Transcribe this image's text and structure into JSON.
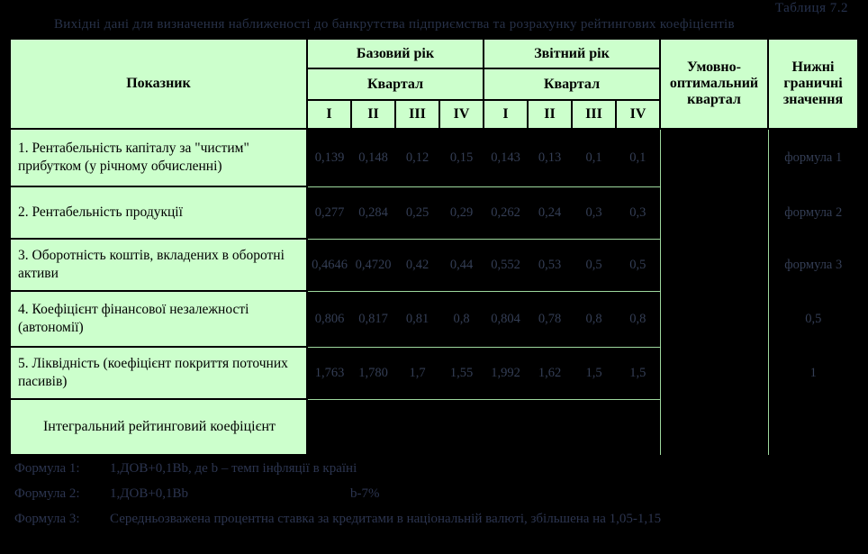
{
  "page_title": "Таблиця 7.2",
  "subtitle": "Вихідні дані для визначення наближеності до банкрутства підприємства та розрахунку рейтингових коефіцієнтів",
  "table": {
    "headers": {
      "indicator": "Показник",
      "base_year": "Базовий рік",
      "report_year": "Звітний рік",
      "quarter_base": "Квартал",
      "quarter_report": "Квартал",
      "quarters_base": [
        "I",
        "II",
        "III",
        "IV"
      ],
      "quarters_report": [
        "I",
        "II",
        "III",
        "IV"
      ],
      "optimal": "Умовно-оптимальний квартал",
      "lower_bound": "Нижні граничні значення"
    },
    "rows": [
      {
        "label": "1. Рентабельність капіталу за \"чистим\" прибутком (у річному обчисленні)",
        "values": [
          "0,139",
          "0,148",
          "0,12",
          "0,15",
          "0,143",
          "0,13",
          "0,1",
          "0,1"
        ],
        "optimal": "",
        "bound": "формула 1"
      },
      {
        "label": "2. Рентабельність продукції",
        "values": [
          "0,277",
          "0,284",
          "0,25",
          "0,29",
          "0,262",
          "0,24",
          "0,3",
          "0,3"
        ],
        "optimal": "",
        "bound": "формула 2"
      },
      {
        "label": "3. Оборотність коштів, вкладених в оборотні активи",
        "values": [
          "0,4646",
          "0,4720",
          "0,42",
          "0,44",
          "0,552",
          "0,53",
          "0,5",
          "0,5"
        ],
        "optimal": "",
        "bound": "формула 3"
      },
      {
        "label": "4. Коефіцієнт фінансової незалежності (автономії)",
        "values": [
          "0,806",
          "0,817",
          "0,81",
          "0,8",
          "0,804",
          "0,78",
          "0,8",
          "0,8"
        ],
        "optimal": "",
        "bound": "0,5"
      },
      {
        "label": "5. Ліквідність (коефіцієнт покриття поточних пасивів)",
        "values": [
          "1,763",
          "1,780",
          "1,7",
          "1,55",
          "1,992",
          "1,62",
          "1,5",
          "1,5"
        ],
        "optimal": "",
        "bound": "1"
      },
      {
        "label": "Інтегральний рейтинговий коефіцієнт",
        "values": [
          "",
          "",
          "",
          "",
          "",
          "",
          "",
          ""
        ],
        "optimal": "",
        "bound": ""
      }
    ]
  },
  "formulas": [
    {
      "label": "Формула 1:",
      "text": "1,ДОВ+0,1Вb, де b – темп інфляції в країні",
      "note": ""
    },
    {
      "label": "Формула 2:",
      "text": "1,ДОВ+0,1Вb",
      "note": "b-7%"
    },
    {
      "label": "Формула 3:",
      "text": "Середньозважена процентна ставка за кредитами в національній валюті, збільшена на 1,05-1,15",
      "note": ""
    }
  ],
  "colors": {
    "cell_green": "#ccffcc",
    "faint_text": "#343e55",
    "grid_green": "#9ed89e"
  }
}
